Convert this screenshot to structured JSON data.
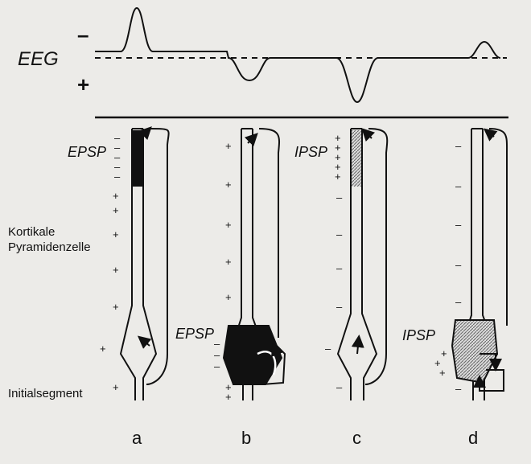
{
  "eeg": {
    "label": "EEG",
    "minus_sign": "–",
    "plus_sign": "+"
  },
  "labels": {
    "epsp_a": "EPSP",
    "ipsp_c": "IPSP",
    "epsp_b": "EPSP",
    "ipsp_d": "IPSP",
    "cell_line1": "Kortikale",
    "cell_line2": "Pyramidenzelle",
    "initial_segment": "Initialsegment"
  },
  "panels": [
    "a",
    "b",
    "c",
    "d"
  ],
  "colors": {
    "ink": "#111111",
    "paper": "#ecebe8",
    "hatch": "#777777"
  }
}
